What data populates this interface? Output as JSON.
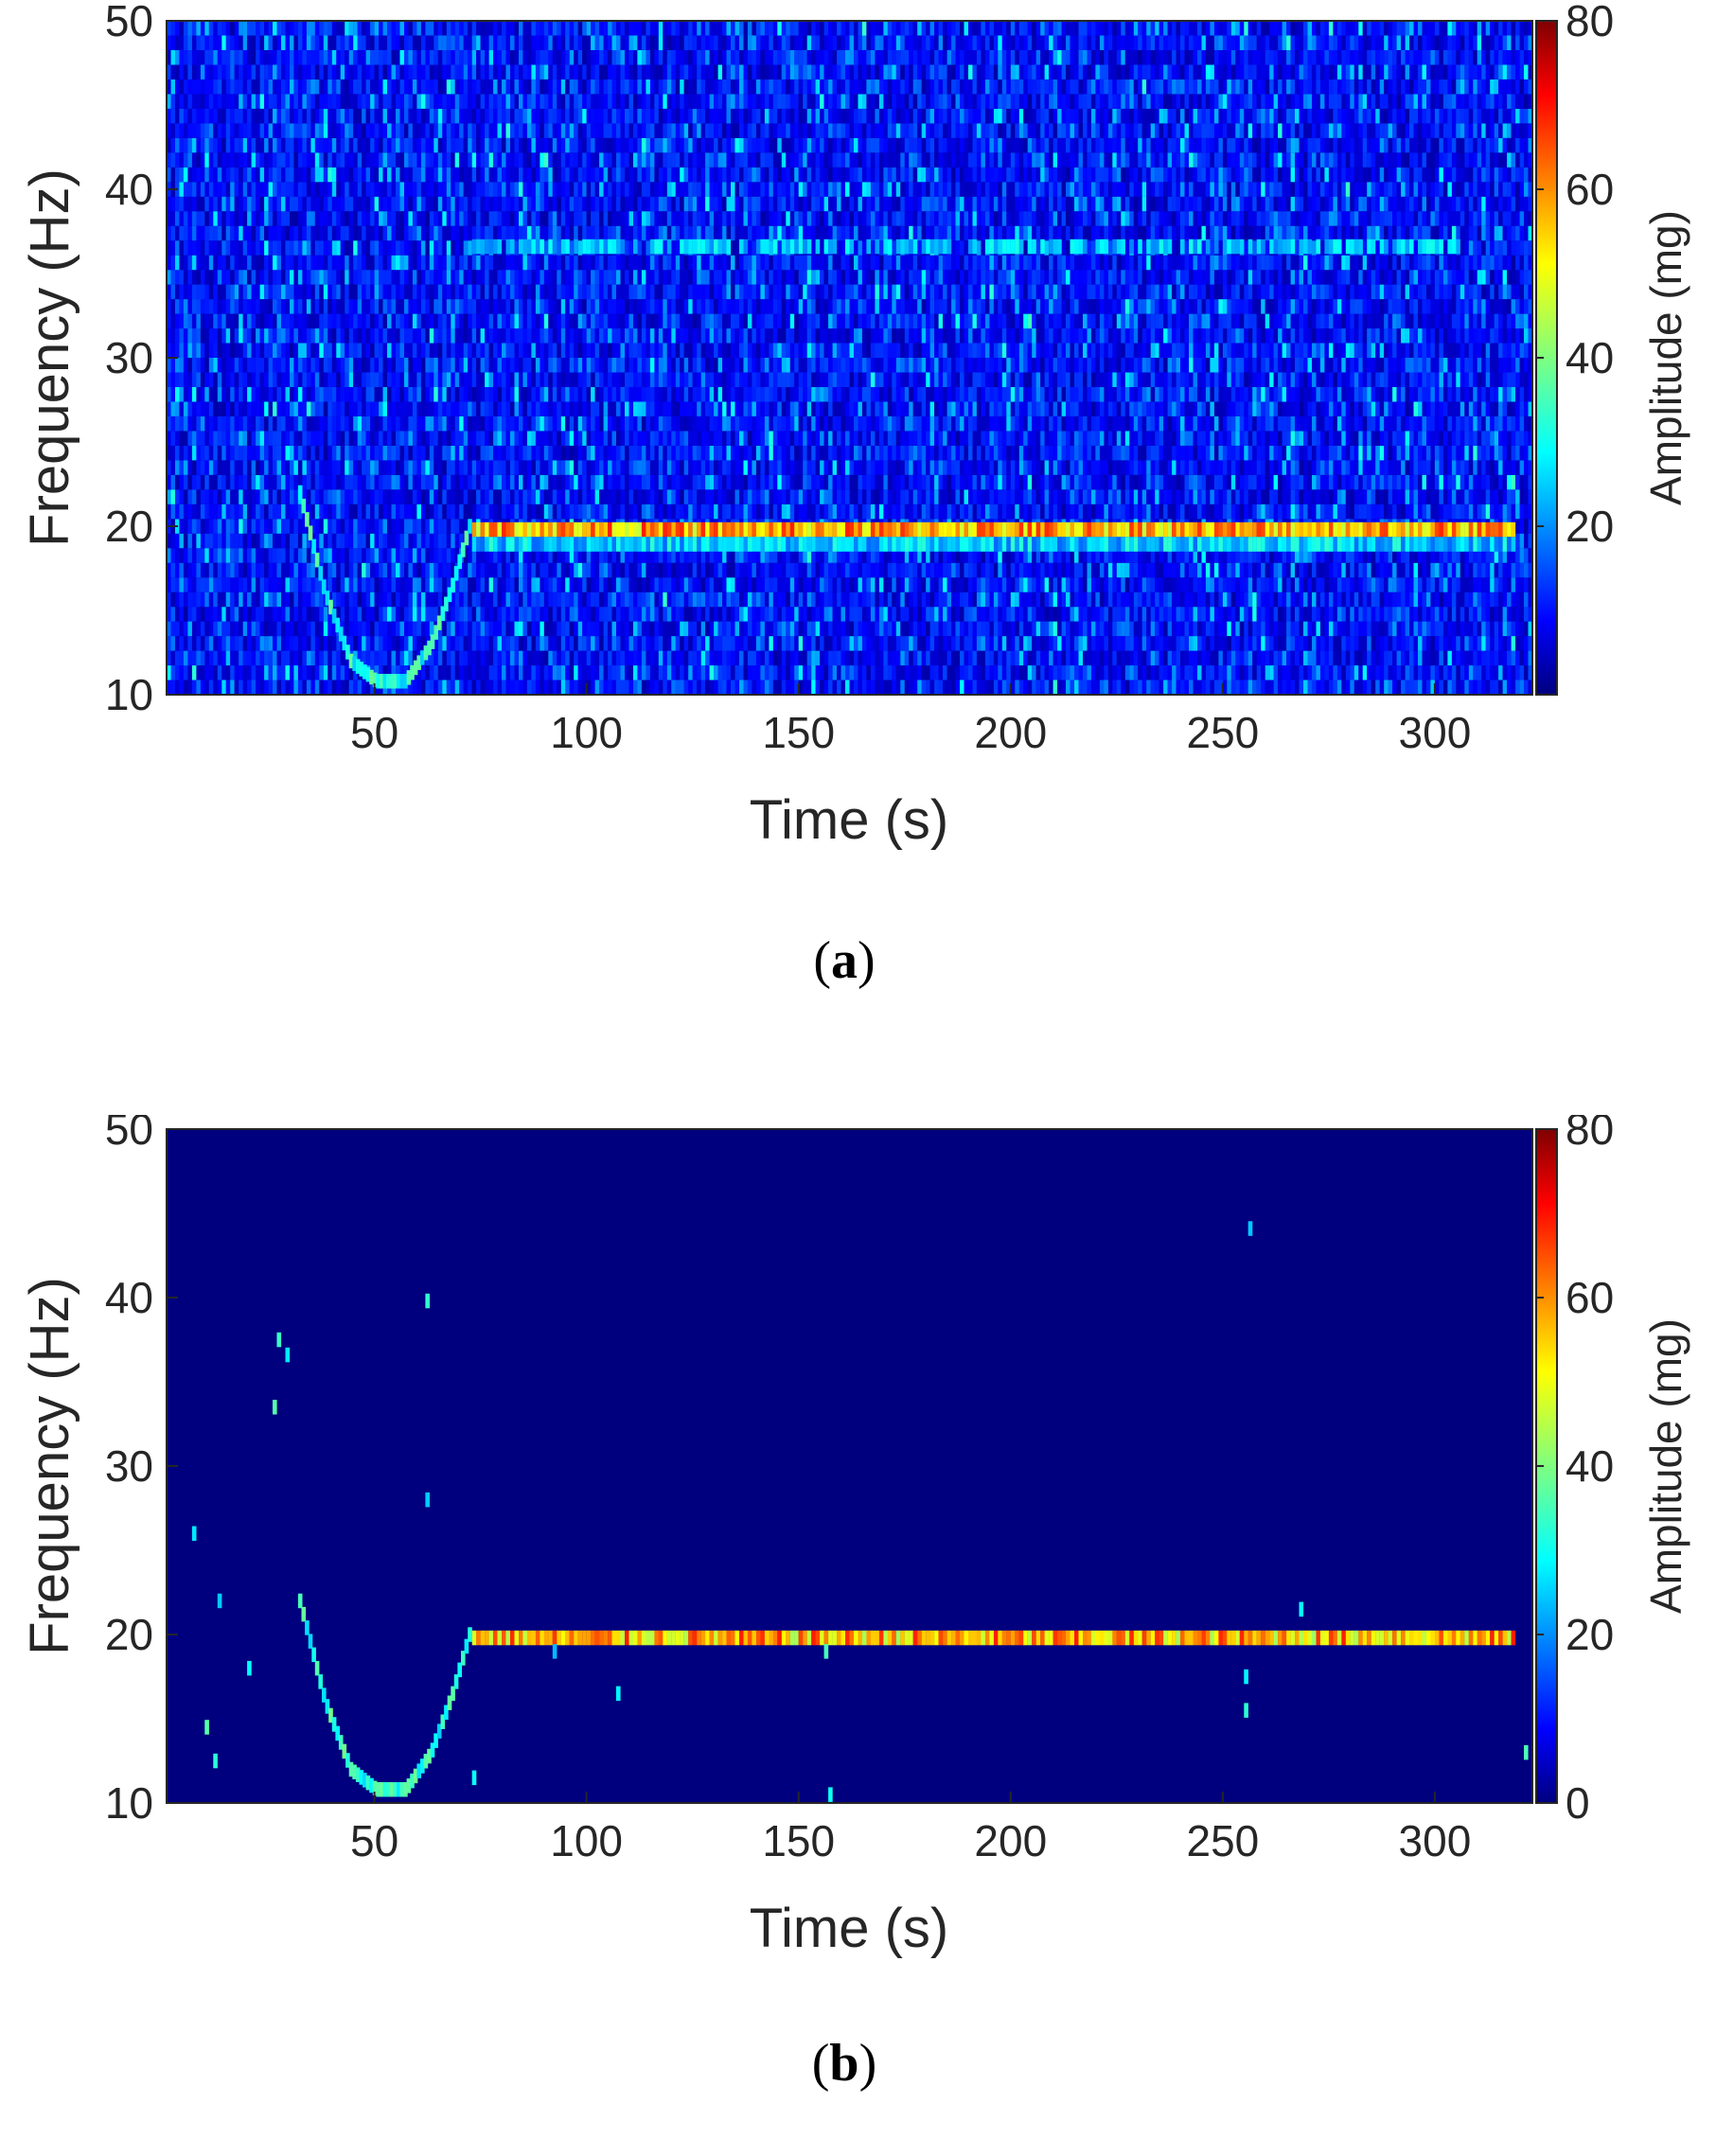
{
  "colors": {
    "colormap": "jet",
    "axis": "#262626",
    "background": "#ffffff"
  },
  "chart_data": [
    {
      "type": "heatmap",
      "panel_label": "a",
      "caption": [
        "(",
        "a",
        ")"
      ],
      "xlabel": "Time (s)",
      "ylabel": "Frequency (Hz)",
      "colorbar_label": "Amplitude (mg)",
      "xlim": [
        1,
        323
      ],
      "ylim": [
        10,
        50
      ],
      "clim": [
        0,
        80
      ],
      "colorbar_ticks": [
        "20",
        "40",
        "60",
        "80"
      ],
      "xticks": [
        "50",
        "100",
        "150",
        "200",
        "250",
        "300"
      ],
      "yticks": [
        "10",
        "20",
        "30",
        "40",
        "50"
      ],
      "colormap": "jet",
      "background": "noise",
      "dominant_ridge": {
        "t_start": 73,
        "t_end": 318,
        "frequency_hz": 19.8,
        "amplitude_mg": [
          45,
          68
        ]
      },
      "secondary_band": {
        "t_start": 73,
        "t_end": 305,
        "frequency_hz": 36.6,
        "amplitude_mg": [
          20,
          32
        ]
      },
      "sweep_curve": {
        "t": [
          32,
          38,
          44,
          50,
          57,
          63,
          68,
          72
        ],
        "frequency_hz": [
          22,
          16,
          12,
          10.8,
          10.8,
          13,
          16.5,
          20
        ]
      }
    },
    {
      "type": "heatmap",
      "panel_label": "b",
      "caption": [
        "(",
        "b",
        ")"
      ],
      "xlabel": "Time (s)",
      "ylabel": "Frequency (Hz)",
      "colorbar_label": "Amplitude (mg)",
      "xlim": [
        1,
        323
      ],
      "ylim": [
        10,
        50
      ],
      "clim": [
        0,
        80
      ],
      "colorbar_ticks": [
        "0",
        "20",
        "40",
        "60",
        "80"
      ],
      "xticks": [
        "50",
        "100",
        "150",
        "200",
        "250",
        "300"
      ],
      "yticks": [
        "10",
        "20",
        "30",
        "40",
        "50"
      ],
      "colormap": "jet",
      "background": "zero",
      "dominant_ridge": {
        "t_start": 73,
        "t_end": 318,
        "frequency_hz": 19.8,
        "amplitude_mg": [
          42,
          68
        ]
      },
      "sweep_curve": {
        "t": [
          32,
          38,
          44,
          50,
          57,
          63,
          68,
          72
        ],
        "frequency_hz": [
          22,
          16,
          12,
          10.8,
          10.8,
          13,
          16.5,
          20
        ]
      },
      "isolated_points": [
        {
          "t": 256,
          "f": 44.1
        },
        {
          "t": 62,
          "f": 39.8
        },
        {
          "t": 27,
          "f": 37.5
        },
        {
          "t": 29,
          "f": 36.6
        },
        {
          "t": 26,
          "f": 33.5
        },
        {
          "t": 62,
          "f": 28.0
        },
        {
          "t": 7,
          "f": 26.0
        },
        {
          "t": 13,
          "f": 22.0
        },
        {
          "t": 268,
          "f": 21.5
        },
        {
          "t": 20,
          "f": 18.0
        },
        {
          "t": 92,
          "f": 19.0
        },
        {
          "t": 156,
          "f": 19.0
        },
        {
          "t": 255,
          "f": 17.5
        },
        {
          "t": 255,
          "f": 15.5
        },
        {
          "t": 107,
          "f": 16.5
        },
        {
          "t": 73,
          "f": 11.5
        },
        {
          "t": 157,
          "f": 10.5
        },
        {
          "t": 321,
          "f": 13.0
        },
        {
          "t": 10,
          "f": 14.5
        },
        {
          "t": 12,
          "f": 12.5
        }
      ]
    }
  ]
}
